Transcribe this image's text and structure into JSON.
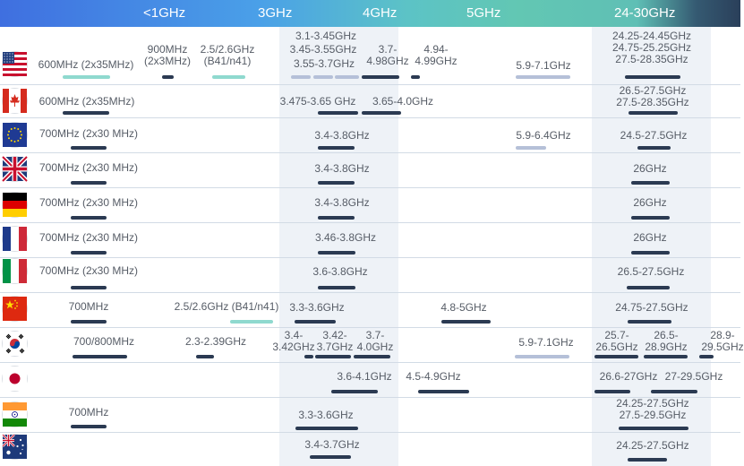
{
  "chart_data": {
    "type": "table",
    "title": "",
    "columns": [
      "<1GHz",
      "3GHz",
      "4GHz",
      "5GHz",
      "24-30GHz"
    ],
    "legend": {
      "dark": "#2b3a52",
      "light": "#b5c0d8",
      "teal": "#8fd9cf"
    },
    "rows": [
      {
        "flag": "us-flag",
        "bands": [
          {
            "label": "600MHz (2x35MHz)",
            "style": "teal"
          },
          {
            "label": "900MHz\n(2x3MHz)",
            "style": "dark"
          },
          {
            "label": "2.5/2.6GHz\n(B41/n41)",
            "style": "teal"
          },
          {
            "label": "3.1-3.45GHz",
            "style": "light"
          },
          {
            "label": "3.45-3.55GHz",
            "style": "light"
          },
          {
            "label": "3.55-3.7GHz",
            "style": "light"
          },
          {
            "label": "3.7-\n4.98GHz",
            "style": "dark"
          },
          {
            "label": "4.94-\n4.99GHz",
            "style": "dark"
          },
          {
            "label": "5.9-7.1GHz",
            "style": "light"
          },
          {
            "label": "24.25-24.45GHz\n24.75-25.25GHz\n27.5-28.35GHz",
            "style": "dark"
          }
        ]
      },
      {
        "flag": "ca-flag",
        "bands": [
          {
            "label": "600MHz (2x35MHz)",
            "style": "dark"
          },
          {
            "label": "3.475-3.65 GHz",
            "style": "dark"
          },
          {
            "label": "3.65-4.0GHz",
            "style": "dark"
          },
          {
            "label": "26.5-27.5GHz\n27.5-28.35GHz",
            "style": "dark"
          }
        ]
      },
      {
        "flag": "eu-flag",
        "bands": [
          {
            "label": "700MHz (2x30 MHz)",
            "style": "dark"
          },
          {
            "label": "3.4-3.8GHz",
            "style": "dark"
          },
          {
            "label": "5.9-6.4GHz",
            "style": "light"
          },
          {
            "label": "24.5-27.5GHz",
            "style": "dark"
          }
        ]
      },
      {
        "flag": "uk-flag",
        "bands": [
          {
            "label": "700MHz (2x30 MHz)",
            "style": "dark"
          },
          {
            "label": "3.4-3.8GHz",
            "style": "dark"
          },
          {
            "label": "26GHz",
            "style": "dark"
          }
        ]
      },
      {
        "flag": "de-flag",
        "bands": [
          {
            "label": "700MHz (2x30 MHz)",
            "style": "dark"
          },
          {
            "label": "3.4-3.8GHz",
            "style": "dark"
          },
          {
            "label": "26GHz",
            "style": "dark"
          }
        ]
      },
      {
        "flag": "fr-flag",
        "bands": [
          {
            "label": "700MHz (2x30 MHz)",
            "style": "dark"
          },
          {
            "label": "3.46-3.8GHz",
            "style": "dark"
          },
          {
            "label": "26GHz",
            "style": "dark"
          }
        ]
      },
      {
        "flag": "it-flag",
        "bands": [
          {
            "label": "700MHz (2x30 MHz)",
            "style": "dark"
          },
          {
            "label": "3.6-3.8GHz",
            "style": "dark"
          },
          {
            "label": "26.5-27.5GHz",
            "style": "dark"
          }
        ]
      },
      {
        "flag": "cn-flag",
        "bands": [
          {
            "label": "700MHz",
            "style": "dark"
          },
          {
            "label": "2.5/2.6GHz (B41/n41)",
            "style": "teal"
          },
          {
            "label": "3.3-3.6GHz",
            "style": "dark"
          },
          {
            "label": "4.8-5GHz",
            "style": "dark"
          },
          {
            "label": "24.75-27.5GHz",
            "style": "dark"
          }
        ]
      },
      {
        "flag": "kr-flag",
        "bands": [
          {
            "label": "700/800MHz",
            "style": "dark"
          },
          {
            "label": "2.3-2.39GHz",
            "style": "dark"
          },
          {
            "label": "3.4-\n3.42GHz",
            "style": "dark"
          },
          {
            "label": "3.42-\n3.7GHz",
            "style": "dark"
          },
          {
            "label": "3.7-\n4.0GHz",
            "style": "dark"
          },
          {
            "label": "5.9-7.1GHz",
            "style": "light"
          },
          {
            "label": "25.7-\n26.5GHz",
            "style": "dark"
          },
          {
            "label": "26.5-\n28.9GHz",
            "style": "dark"
          },
          {
            "label": "28.9-\n29.5GHz",
            "style": "dark"
          }
        ]
      },
      {
        "flag": "jp-flag",
        "bands": [
          {
            "label": "3.6-4.1GHz",
            "style": "dark"
          },
          {
            "label": "4.5-4.9GHz",
            "style": "dark"
          },
          {
            "label": "26.6-27GHz",
            "style": "dark"
          },
          {
            "label": "27-29.5GHz",
            "style": "dark"
          }
        ]
      },
      {
        "flag": "in-flag",
        "bands": [
          {
            "label": "700MHz",
            "style": "dark"
          },
          {
            "label": "3.3-3.6GHz",
            "style": "dark"
          },
          {
            "label": "24.25-27.5GHz\n27.5-29.5GHz",
            "style": "dark"
          }
        ]
      },
      {
        "flag": "au-flag",
        "bands": [
          {
            "label": "3.4-3.7GHz",
            "style": "dark"
          },
          {
            "label": "24.25-27.5GHz",
            "style": "dark"
          }
        ]
      }
    ]
  }
}
